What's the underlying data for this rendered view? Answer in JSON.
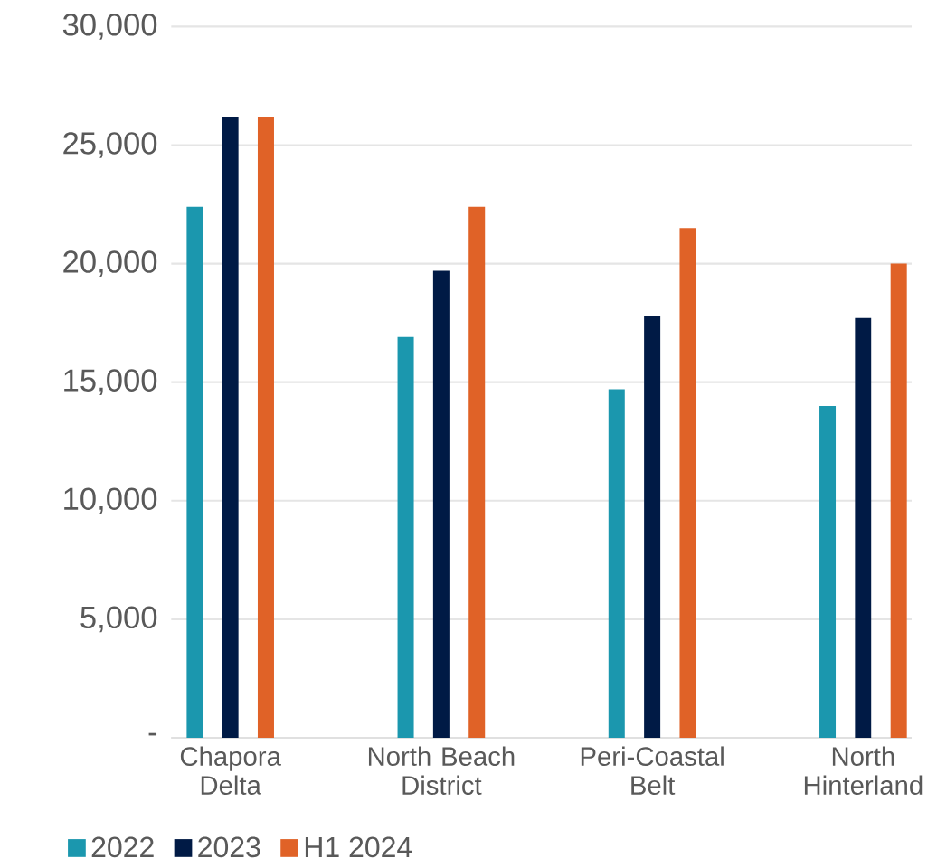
{
  "chart_data": {
    "type": "bar",
    "categories": [
      "Chapora Delta",
      "North Beach District",
      "Peri-Coastal Belt",
      "North Hinterland"
    ],
    "series": [
      {
        "name": "2022",
        "color": "#1b97ae",
        "values": [
          22400,
          16900,
          14700,
          14000
        ]
      },
      {
        "name": "2023",
        "color": "#001a45",
        "values": [
          26200,
          19700,
          17800,
          17700
        ]
      },
      {
        "name": "H1 2024",
        "color": "#e06227",
        "values": [
          26200,
          22400,
          21500,
          20000
        ]
      }
    ],
    "ylim": [
      0,
      30000
    ],
    "yticks": [
      {
        "value": 0,
        "label": "-"
      },
      {
        "value": 5000,
        "label": "5,000"
      },
      {
        "value": 10000,
        "label": "10,000"
      },
      {
        "value": 15000,
        "label": "15,000"
      },
      {
        "value": 20000,
        "label": "20,000"
      },
      {
        "value": 25000,
        "label": "25,000"
      },
      {
        "value": 30000,
        "label": "30,000"
      }
    ],
    "grid": "y",
    "legend": "bottom"
  }
}
